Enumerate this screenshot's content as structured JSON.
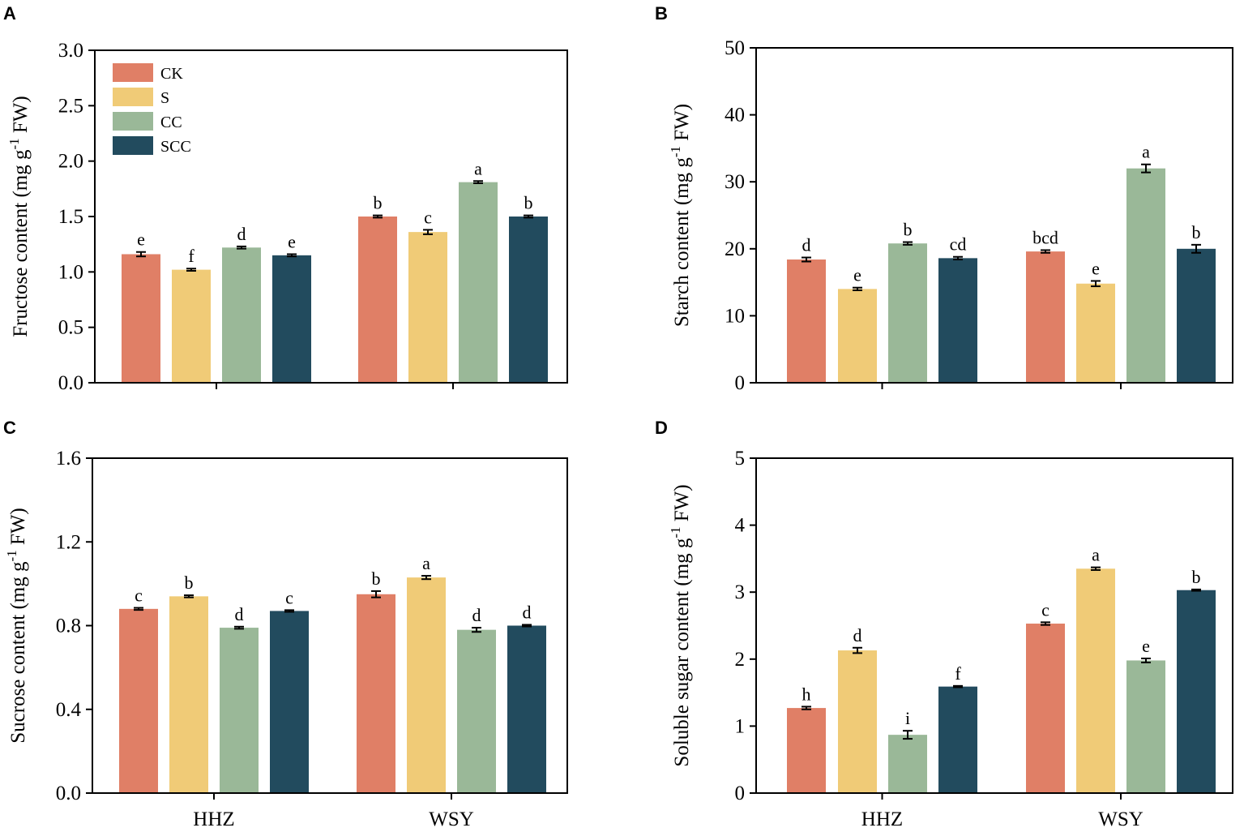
{
  "colors": {
    "CK": "#E07F66",
    "S": "#F0CB77",
    "CC": "#9AB898",
    "SCC": "#224B5E"
  },
  "legend": [
    "CK",
    "S",
    "CC",
    "SCC"
  ],
  "chart_data": [
    {
      "panel": "A",
      "type": "bar",
      "categories": [
        "HHZ",
        "WSY"
      ],
      "show_xticklabels": false,
      "ylabel_pre": "Fructose content (mg g",
      "ylabel_sup": "-1",
      "ylabel_post": " FW)",
      "ylim": [
        0,
        3.0
      ],
      "yticks": [
        "0.0",
        "0.5",
        "1.0",
        "1.5",
        "2.0",
        "2.5",
        "3.0"
      ],
      "ytick_values": [
        0,
        0.5,
        1.0,
        1.5,
        2.0,
        2.5,
        3.0
      ],
      "legend": "top-left",
      "series": [
        {
          "name": "CK",
          "values": [
            1.16,
            1.5
          ],
          "errors": [
            0.02,
            0.01
          ],
          "labels": [
            "e",
            "b"
          ]
        },
        {
          "name": "S",
          "values": [
            1.02,
            1.36
          ],
          "errors": [
            0.01,
            0.02
          ],
          "labels": [
            "f",
            "c"
          ]
        },
        {
          "name": "CC",
          "values": [
            1.22,
            1.81
          ],
          "errors": [
            0.01,
            0.01
          ],
          "labels": [
            "d",
            "a"
          ]
        },
        {
          "name": "SCC",
          "values": [
            1.15,
            1.5
          ],
          "errors": [
            0.01,
            0.01
          ],
          "labels": [
            "e",
            "b"
          ]
        }
      ]
    },
    {
      "panel": "B",
      "type": "bar",
      "categories": [
        "HHZ",
        "WSY"
      ],
      "show_xticklabels": false,
      "ylabel_pre": "Starch content (mg g",
      "ylabel_sup": "-1",
      "ylabel_post": " FW)",
      "ylim": [
        0,
        50
      ],
      "yticks": [
        "0",
        "10",
        "20",
        "30",
        "40",
        "50"
      ],
      "ytick_values": [
        0,
        10,
        20,
        30,
        40,
        50
      ],
      "legend": "none",
      "series": [
        {
          "name": "CK",
          "values": [
            18.4,
            19.6
          ],
          "errors": [
            0.3,
            0.2
          ],
          "labels": [
            "d",
            "bcd"
          ]
        },
        {
          "name": "S",
          "values": [
            14.0,
            14.8
          ],
          "errors": [
            0.2,
            0.4
          ],
          "labels": [
            "e",
            "e"
          ]
        },
        {
          "name": "CC",
          "values": [
            20.8,
            32.0
          ],
          "errors": [
            0.2,
            0.6
          ],
          "labels": [
            "b",
            "a"
          ]
        },
        {
          "name": "SCC",
          "values": [
            18.6,
            20.0
          ],
          "errors": [
            0.2,
            0.6
          ],
          "labels": [
            "cd",
            "b"
          ]
        }
      ]
    },
    {
      "panel": "C",
      "type": "bar",
      "categories": [
        "HHZ",
        "WSY"
      ],
      "show_xticklabels": true,
      "ylabel_pre": "Sucrose content (mg g",
      "ylabel_sup": "-1",
      "ylabel_post": " FW)",
      "ylim": [
        0,
        1.6
      ],
      "yticks": [
        "0.0",
        "0.4",
        "0.8",
        "1.2",
        "1.6"
      ],
      "ytick_values": [
        0,
        0.4,
        0.8,
        1.2,
        1.6
      ],
      "legend": "none",
      "series": [
        {
          "name": "CK",
          "values": [
            0.88,
            0.95
          ],
          "errors": [
            0.005,
            0.015
          ],
          "labels": [
            "c",
            "b"
          ]
        },
        {
          "name": "S",
          "values": [
            0.94,
            1.03
          ],
          "errors": [
            0.005,
            0.008
          ],
          "labels": [
            "b",
            "a"
          ]
        },
        {
          "name": "CC",
          "values": [
            0.79,
            0.78
          ],
          "errors": [
            0.005,
            0.01
          ],
          "labels": [
            "d",
            "d"
          ]
        },
        {
          "name": "SCC",
          "values": [
            0.87,
            0.8
          ],
          "errors": [
            0.004,
            0.004
          ],
          "labels": [
            "c",
            "d"
          ]
        }
      ]
    },
    {
      "panel": "D",
      "type": "bar",
      "categories": [
        "HHZ",
        "WSY"
      ],
      "show_xticklabels": true,
      "ylabel_pre": "Soluble sugar content (mg g",
      "ylabel_sup": "-1",
      "ylabel_post": " FW)",
      "ylim": [
        0,
        5
      ],
      "yticks": [
        "0",
        "1",
        "2",
        "3",
        "4",
        "5"
      ],
      "ytick_values": [
        0,
        1,
        2,
        3,
        4,
        5
      ],
      "legend": "none",
      "series": [
        {
          "name": "CK",
          "values": [
            1.27,
            2.53
          ],
          "errors": [
            0.02,
            0.02
          ],
          "labels": [
            "h",
            "c"
          ]
        },
        {
          "name": "S",
          "values": [
            2.13,
            3.35
          ],
          "errors": [
            0.04,
            0.02
          ],
          "labels": [
            "d",
            "a"
          ]
        },
        {
          "name": "CC",
          "values": [
            0.87,
            1.98
          ],
          "errors": [
            0.06,
            0.03
          ],
          "labels": [
            "i",
            "e"
          ]
        },
        {
          "name": "SCC",
          "values": [
            1.59,
            3.03
          ],
          "errors": [
            0.01,
            0.01
          ],
          "labels": [
            "f",
            "b"
          ]
        }
      ]
    }
  ]
}
